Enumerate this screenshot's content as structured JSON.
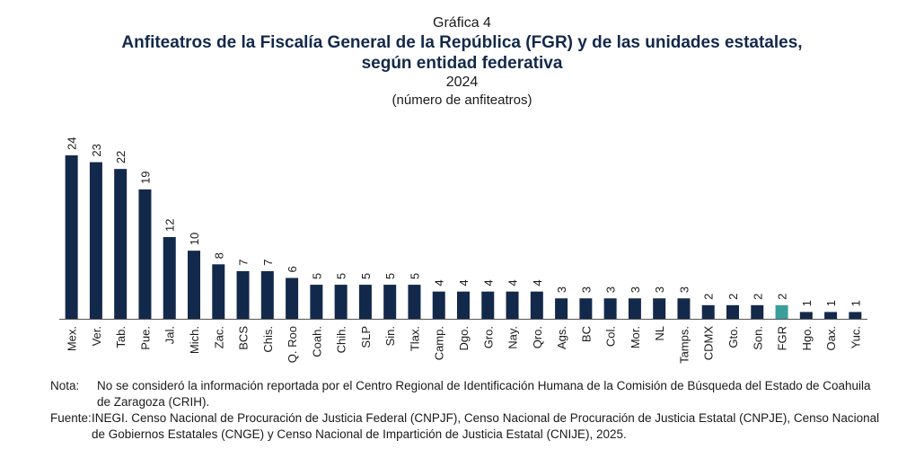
{
  "header": {
    "label": "Gráfica 4",
    "title_line1": "Anfiteatros de la Fiscalía General de la República (FGR) y de las unidades estatales,",
    "title_line2": "según entidad federativa",
    "year": "2024",
    "subtitle": "(número de anfiteatros)"
  },
  "chart_data": {
    "type": "bar",
    "title": "Anfiteatros de la Fiscalía General de la República (FGR) y de las unidades estatales, según entidad federativa",
    "xlabel": "",
    "ylabel": "",
    "ylim": [
      0,
      24
    ],
    "grid": false,
    "categories": [
      "Mex.",
      "Ver.",
      "Tab.",
      "Pue.",
      "Jal.",
      "Mich.",
      "Zac.",
      "BCS",
      "Chis.",
      "Q. Roo",
      "Coah.",
      "Chih.",
      "SLP",
      "Sin.",
      "Tlax.",
      "Camp.",
      "Dgo.",
      "Gro.",
      "Nay.",
      "Qro.",
      "Ags.",
      "BC",
      "Col.",
      "Mor.",
      "NL",
      "Tamps.",
      "CDMX",
      "Gto.",
      "Son.",
      "FGR",
      "Hgo.",
      "Oax.",
      "Yuc."
    ],
    "values": [
      24,
      23,
      22,
      19,
      12,
      10,
      8,
      7,
      7,
      6,
      5,
      5,
      5,
      5,
      5,
      4,
      4,
      4,
      4,
      4,
      3,
      3,
      3,
      3,
      3,
      3,
      2,
      2,
      2,
      2,
      1,
      1,
      1
    ],
    "colors": {
      "default": "#13294b",
      "highlight": "#3a9e9a"
    },
    "highlight_category": "FGR"
  },
  "notes": {
    "nota_key": "Nota:",
    "nota_text": "No se consideró la información reportada por el Centro Regional de Identificación Humana de la Comisión de Búsqueda del Estado de Coahuila de Zaragoza (CRIH).",
    "fuente_key": "Fuente:",
    "fuente_text": "INEGI. Censo Nacional de Procuración de Justicia Federal (CNPJF), Censo Nacional de Procuración de Justicia Estatal (CNPJE), Censo Nacional de Gobiernos Estatales (CNGE) y Censo Nacional de Impartición de Justicia Estatal (CNIJE), 2025."
  }
}
